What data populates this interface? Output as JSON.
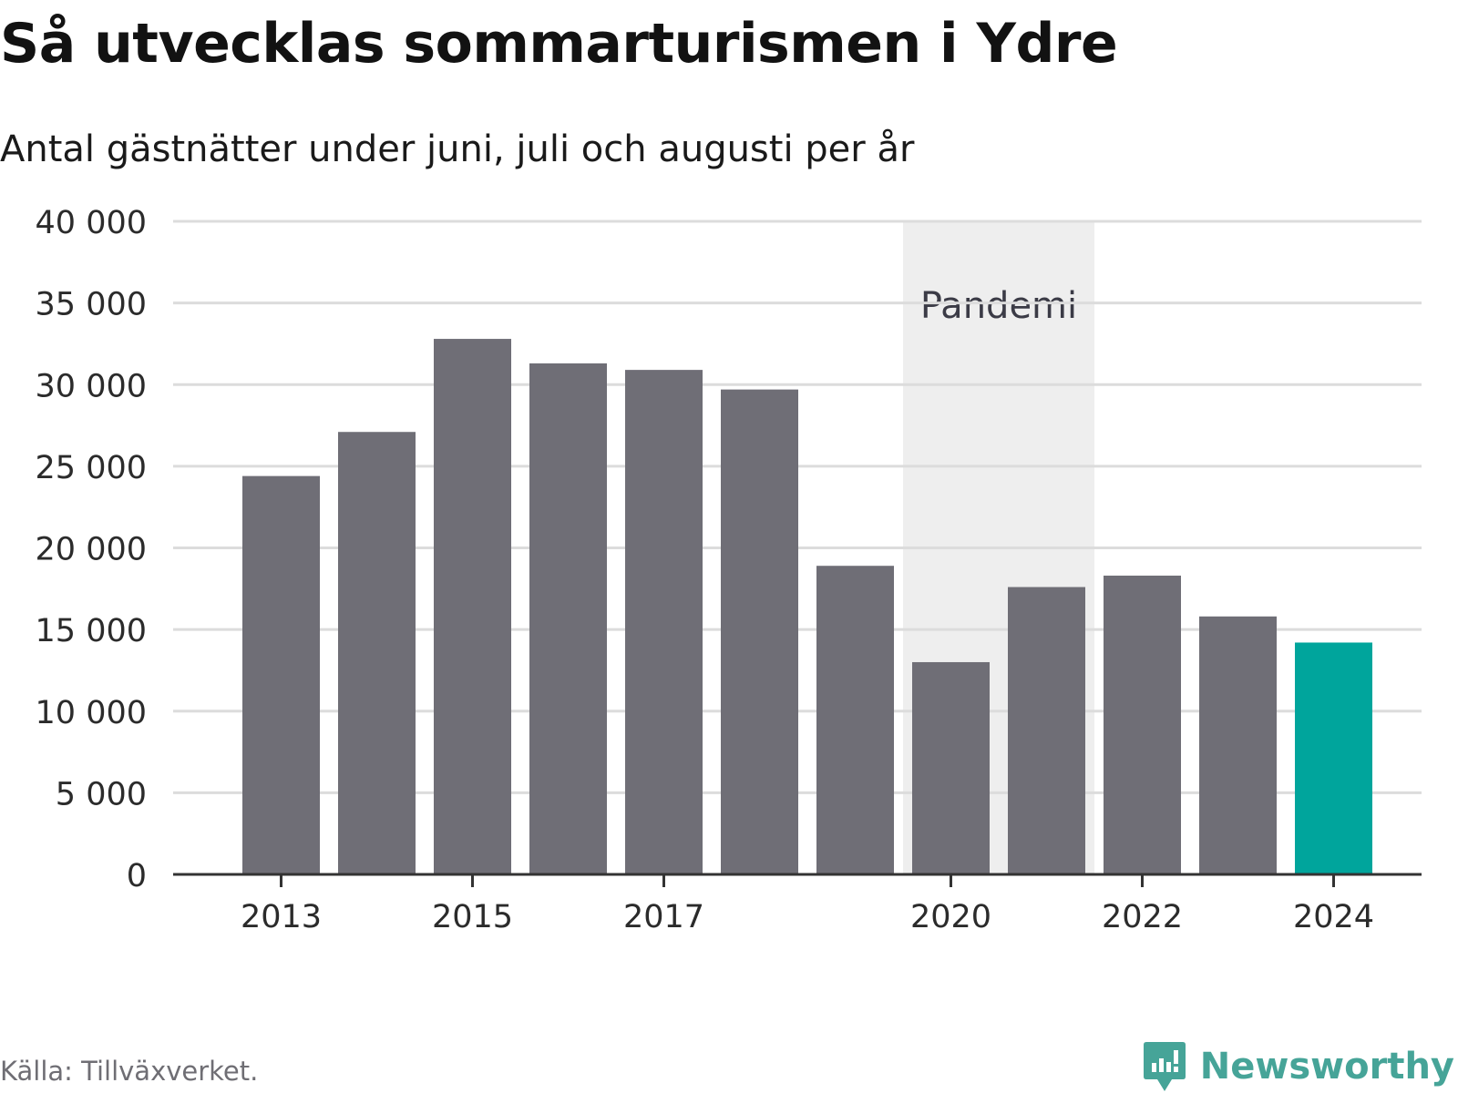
{
  "header": {
    "title": "Så utvecklas sommarturismen i Ydre",
    "subtitle": "Antal gästnätter under juni, juli och augusti per år"
  },
  "footer": {
    "source": "Källa: Tillväxverket.",
    "brand_name": "Newsworthy",
    "brand_icon": "bar-chart-speech-bubble-icon"
  },
  "colors": {
    "bar": "#6f6e76",
    "highlight": "#00a59c",
    "shade": "#eeeeee",
    "grid": "#dcdcdc",
    "axis": "#333333",
    "brand": "#46a498"
  },
  "chart_data": {
    "type": "bar",
    "categories": [
      "2013",
      "2014",
      "2015",
      "2016",
      "2017",
      "2018",
      "2019",
      "2020",
      "2021",
      "2022",
      "2023",
      "2024"
    ],
    "values": [
      24400,
      27100,
      32800,
      31300,
      30900,
      29700,
      18900,
      13000,
      17600,
      18300,
      15800,
      14200
    ],
    "highlight_category": "2024",
    "x_tick_labels": [
      "2013",
      "2015",
      "2017",
      "2020",
      "2022",
      "2024"
    ],
    "y_ticks": [
      0,
      5000,
      10000,
      15000,
      20000,
      25000,
      30000,
      35000,
      40000
    ],
    "y_tick_labels": [
      "0",
      "5 000",
      "10 000",
      "15 000",
      "20 000",
      "25 000",
      "30 000",
      "35 000",
      "40 000"
    ],
    "ylim": [
      0,
      40000
    ],
    "grid": true,
    "legend": "none",
    "xlabel": "",
    "ylabel": "",
    "annotations": [
      {
        "type": "shaded-range",
        "from": "2019.5",
        "to": "2021.5",
        "label": "Pandemi"
      }
    ]
  }
}
